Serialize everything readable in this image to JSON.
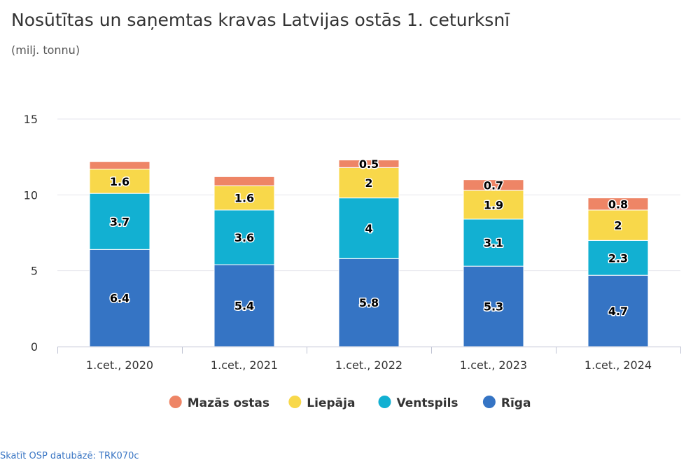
{
  "title": "Nosūtītas un saņemtas kravas Latvijas ostās 1. ceturksnī",
  "subtitle": "(milj. tonnu)",
  "footer": {
    "label": "Skatīt OSP datubāzē:",
    "code": "TRK070c"
  },
  "colors": {
    "Rīga": "#3574c4",
    "Ventspils": "#12b0d2",
    "Liepāja": "#f8d84a",
    "Mazās ostas": "#ee8566",
    "grid": "#e4e4ec",
    "axis": "#bfc3d3",
    "text": "#333333"
  },
  "chart_data": {
    "type": "bar",
    "stacked": true,
    "categories": [
      "1.cet., 2020",
      "1.cet., 2021",
      "1.cet., 2022",
      "1.cet., 2023",
      "1.cet., 2024"
    ],
    "series": [
      {
        "name": "Rīga",
        "values": [
          6.4,
          5.4,
          5.8,
          5.3,
          4.7
        ],
        "labels": [
          "6.4",
          "5.4",
          "5.8",
          "5.3",
          "4.7"
        ]
      },
      {
        "name": "Ventspils",
        "values": [
          3.7,
          3.6,
          4.0,
          3.1,
          2.3
        ],
        "labels": [
          "3.7",
          "3.6",
          "4",
          "3.1",
          "2.3"
        ]
      },
      {
        "name": "Liepāja",
        "values": [
          1.6,
          1.6,
          2.0,
          1.9,
          2.0
        ],
        "labels": [
          "1.6",
          "1.6",
          "2",
          "1.9",
          "2"
        ]
      },
      {
        "name": "Mazās ostas",
        "values": [
          0.5,
          0.6,
          0.5,
          0.7,
          0.8
        ],
        "labels": [
          "",
          "",
          "0.5",
          "0.7",
          "0.8"
        ]
      }
    ],
    "yticks": [
      "0",
      "5",
      "10",
      "15"
    ],
    "ylim": [
      0,
      15
    ],
    "grid": true,
    "legend": {
      "position": "bottom",
      "order": [
        "Mazās ostas",
        "Liepāja",
        "Ventspils",
        "Rīga"
      ]
    }
  }
}
